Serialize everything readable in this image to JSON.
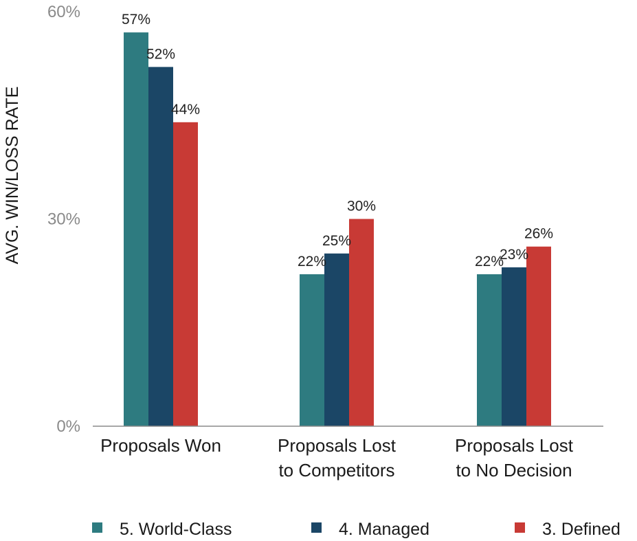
{
  "chart_data": {
    "type": "bar",
    "title": "",
    "xlabel": "",
    "ylabel": "AVG. WIN/LOSS RATE",
    "ylim": [
      0,
      60
    ],
    "yticks": [
      {
        "value": 0,
        "label": "0%"
      },
      {
        "value": 30,
        "label": "30%"
      },
      {
        "value": 60,
        "label": "60%"
      }
    ],
    "categories": [
      [
        "Proposals Won"
      ],
      [
        "Proposals Lost",
        "to Competitors"
      ],
      [
        "Proposals Lost",
        "to No Decision"
      ]
    ],
    "series": [
      {
        "name": "5. World-Class",
        "color": "#2e7b80",
        "values": [
          57,
          22,
          22
        ],
        "labels": [
          "57%",
          "22%",
          "22%"
        ]
      },
      {
        "name": "4. Managed",
        "color": "#1b4666",
        "values": [
          52,
          25,
          23
        ],
        "labels": [
          "52%",
          "25%",
          "23%"
        ]
      },
      {
        "name": "3. Defined",
        "color": "#c83a35",
        "values": [
          44,
          30,
          26
        ],
        "labels": [
          "44%",
          "30%",
          "26%"
        ]
      }
    ],
    "grid": false,
    "legend_position": "bottom"
  }
}
